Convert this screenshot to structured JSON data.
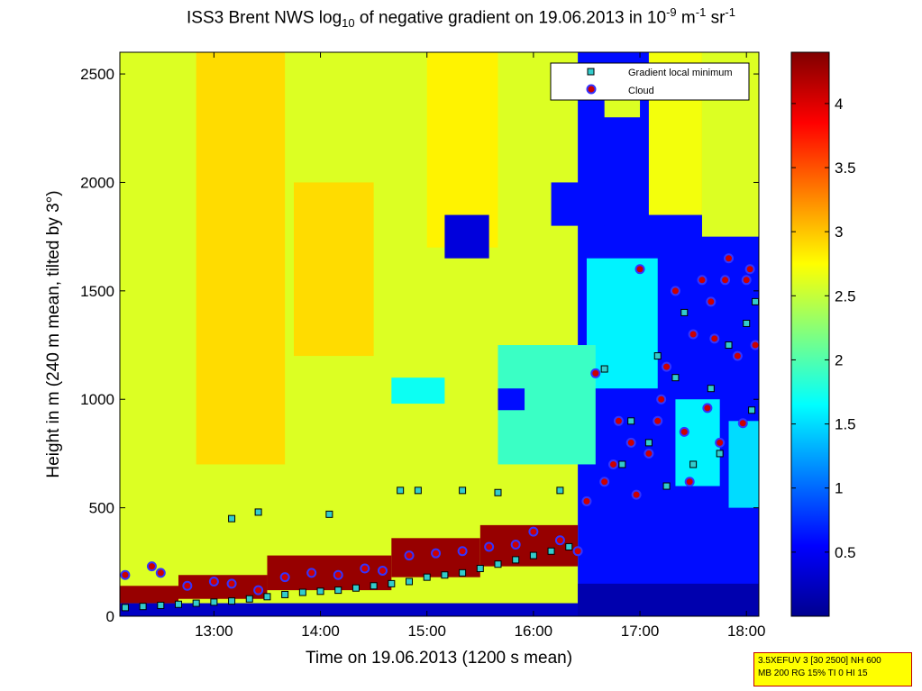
{
  "title": {
    "prefix": "ISS3 Brent NWS log",
    "sub": "10",
    "mid": " of negative gradient on 19.06.2013 in 10",
    "sup1": "-9",
    "mid2": " m",
    "sup2": "-1",
    "mid3": " sr",
    "sup3": "-1"
  },
  "infobox": {
    "line1": "3.5XEFUV 3 [30 2500] NH 600",
    "line2": "MB 200 RG 15% TI 0 HI 15"
  },
  "chart_data": {
    "type": "heatmap",
    "xlabel": "Time on 19.06.2013 (1200 s mean)",
    "ylabel": "Height in m (240 m mean, tilted by 3°)",
    "x_range": [
      "12:07",
      "18:07"
    ],
    "x_ticks": [
      "13:00",
      "14:00",
      "15:00",
      "16:00",
      "17:00",
      "18:00"
    ],
    "ylim": [
      0,
      2600
    ],
    "y_ticks": [
      0,
      500,
      1000,
      1500,
      2000,
      2500
    ],
    "colorbar": {
      "range": [
        0,
        4.4
      ],
      "ticks": [
        0.5,
        1,
        1.5,
        2,
        2.5,
        3,
        3.5,
        4
      ],
      "colormap": "jet"
    },
    "legend": {
      "position": "top-right",
      "entries": [
        {
          "label": "Gradient local minimum",
          "marker": "square",
          "color": "#33cccc"
        },
        {
          "label": "Cloud",
          "marker": "circle",
          "color": "#cc0000",
          "edge": "#3333ff"
        }
      ]
    },
    "regions": [
      {
        "t0": "12:07",
        "t1": "16:30",
        "h0": 0,
        "h1": 2600,
        "value": 2.6
      },
      {
        "t0": "12:50",
        "t1": "13:40",
        "h0": 700,
        "h1": 2600,
        "value": 2.9
      },
      {
        "t0": "13:45",
        "t1": "14:30",
        "h0": 1200,
        "h1": 2000,
        "value": 2.9
      },
      {
        "t0": "15:00",
        "t1": "15:40",
        "h0": 1700,
        "h1": 2600,
        "value": 2.8
      },
      {
        "t0": "16:25",
        "t1": "18:07",
        "h0": 0,
        "h1": 2600,
        "value": 0.6
      },
      {
        "t0": "16:30",
        "t1": "17:10",
        "h0": 1050,
        "h1": 1650,
        "value": 1.6
      },
      {
        "t0": "15:40",
        "t1": "16:35",
        "h0": 700,
        "h1": 1250,
        "value": 1.9
      },
      {
        "t0": "14:40",
        "t1": "15:10",
        "h0": 980,
        "h1": 1100,
        "value": 1.7
      },
      {
        "t0": "15:10",
        "t1": "15:35",
        "h0": 1650,
        "h1": 1850,
        "value": 0.4
      },
      {
        "t0": "15:40",
        "t1": "15:55",
        "h0": 950,
        "h1": 1050,
        "value": 0.6
      },
      {
        "t0": "16:10",
        "t1": "16:40",
        "h0": 1800,
        "h1": 2000,
        "value": 0.6
      },
      {
        "t0": "16:40",
        "t1": "17:00",
        "h0": 2300,
        "h1": 2550,
        "value": 2.6
      },
      {
        "t0": "17:05",
        "t1": "17:35",
        "h0": 1850,
        "h1": 2600,
        "value": 2.7
      },
      {
        "t0": "17:35",
        "t1": "18:07",
        "h0": 1750,
        "h1": 2600,
        "value": 2.6
      },
      {
        "t0": "17:20",
        "t1": "17:45",
        "h0": 600,
        "h1": 1000,
        "value": 1.6
      },
      {
        "t0": "17:50",
        "t1": "18:07",
        "h0": 500,
        "h1": 900,
        "value": 1.5
      },
      {
        "t0": "12:07",
        "t1": "16:30",
        "h0": 0,
        "h1": 60,
        "value": 0.3
      },
      {
        "t0": "12:07",
        "t1": "12:40",
        "h0": 60,
        "h1": 140,
        "value": 4.3
      },
      {
        "t0": "12:40",
        "t1": "13:30",
        "h0": 80,
        "h1": 190,
        "value": 4.3
      },
      {
        "t0": "13:30",
        "t1": "14:40",
        "h0": 120,
        "h1": 280,
        "value": 4.3
      },
      {
        "t0": "14:40",
        "t1": "15:30",
        "h0": 180,
        "h1": 360,
        "value": 4.3
      },
      {
        "t0": "15:30",
        "t1": "16:25",
        "h0": 230,
        "h1": 420,
        "value": 4.3
      },
      {
        "t0": "16:25",
        "t1": "18:07",
        "h0": 0,
        "h1": 150,
        "value": 0.2
      }
    ],
    "series": [
      {
        "name": "Gradient local minimum",
        "points": [
          [
            "12:10",
            40
          ],
          [
            "12:20",
            45
          ],
          [
            "12:30",
            50
          ],
          [
            "12:40",
            55
          ],
          [
            "12:50",
            60
          ],
          [
            "13:00",
            65
          ],
          [
            "13:10",
            70
          ],
          [
            "13:20",
            80
          ],
          [
            "13:30",
            90
          ],
          [
            "13:40",
            100
          ],
          [
            "13:50",
            110
          ],
          [
            "14:00",
            115
          ],
          [
            "14:10",
            120
          ],
          [
            "14:20",
            130
          ],
          [
            "14:30",
            140
          ],
          [
            "14:40",
            150
          ],
          [
            "14:50",
            160
          ],
          [
            "15:00",
            180
          ],
          [
            "15:10",
            190
          ],
          [
            "15:20",
            200
          ],
          [
            "15:30",
            220
          ],
          [
            "15:40",
            240
          ],
          [
            "15:50",
            260
          ],
          [
            "16:00",
            280
          ],
          [
            "16:10",
            300
          ],
          [
            "16:20",
            320
          ],
          [
            "13:10",
            450
          ],
          [
            "13:25",
            480
          ],
          [
            "14:05",
            470
          ],
          [
            "14:45",
            580
          ],
          [
            "14:55",
            580
          ],
          [
            "15:20",
            580
          ],
          [
            "15:40",
            570
          ],
          [
            "16:15",
            580
          ],
          [
            "16:40",
            1140
          ],
          [
            "16:55",
            900
          ],
          [
            "17:05",
            800
          ],
          [
            "17:10",
            1200
          ],
          [
            "17:20",
            1100
          ],
          [
            "17:30",
            700
          ],
          [
            "17:40",
            1050
          ],
          [
            "17:50",
            1250
          ],
          [
            "18:00",
            1350
          ],
          [
            "18:05",
            1450
          ],
          [
            "17:15",
            600
          ],
          [
            "17:45",
            750
          ],
          [
            "18:03",
            950
          ],
          [
            "16:50",
            700
          ],
          [
            "17:25",
            1400
          ]
        ]
      },
      {
        "name": "Cloud",
        "points": [
          [
            "12:10",
            190
          ],
          [
            "12:25",
            230
          ],
          [
            "12:30",
            200
          ],
          [
            "12:45",
            140
          ],
          [
            "13:00",
            160
          ],
          [
            "13:10",
            150
          ],
          [
            "13:25",
            120
          ],
          [
            "13:40",
            180
          ],
          [
            "13:55",
            200
          ],
          [
            "14:10",
            190
          ],
          [
            "14:25",
            220
          ],
          [
            "14:35",
            210
          ],
          [
            "14:50",
            280
          ],
          [
            "15:05",
            290
          ],
          [
            "15:20",
            300
          ],
          [
            "15:35",
            320
          ],
          [
            "15:50",
            330
          ],
          [
            "16:00",
            390
          ],
          [
            "16:15",
            350
          ],
          [
            "16:25",
            300
          ],
          [
            "16:30",
            530
          ],
          [
            "16:40",
            620
          ],
          [
            "16:45",
            700
          ],
          [
            "16:55",
            800
          ],
          [
            "17:00",
            1600
          ],
          [
            "17:05",
            750
          ],
          [
            "17:10",
            900
          ],
          [
            "17:15",
            1150
          ],
          [
            "17:20",
            1500
          ],
          [
            "17:25",
            850
          ],
          [
            "17:30",
            1300
          ],
          [
            "17:35",
            1550
          ],
          [
            "17:40",
            1450
          ],
          [
            "17:45",
            800
          ],
          [
            "17:50",
            1650
          ],
          [
            "17:55",
            1200
          ],
          [
            "18:00",
            1550
          ],
          [
            "18:05",
            1250
          ],
          [
            "17:12",
            1000
          ],
          [
            "17:38",
            960
          ],
          [
            "17:58",
            890
          ],
          [
            "16:35",
            1120
          ],
          [
            "16:58",
            560
          ],
          [
            "17:48",
            1550
          ],
          [
            "18:02",
            1600
          ],
          [
            "17:28",
            620
          ],
          [
            "17:42",
            1280
          ],
          [
            "16:48",
            900
          ]
        ]
      }
    ]
  }
}
